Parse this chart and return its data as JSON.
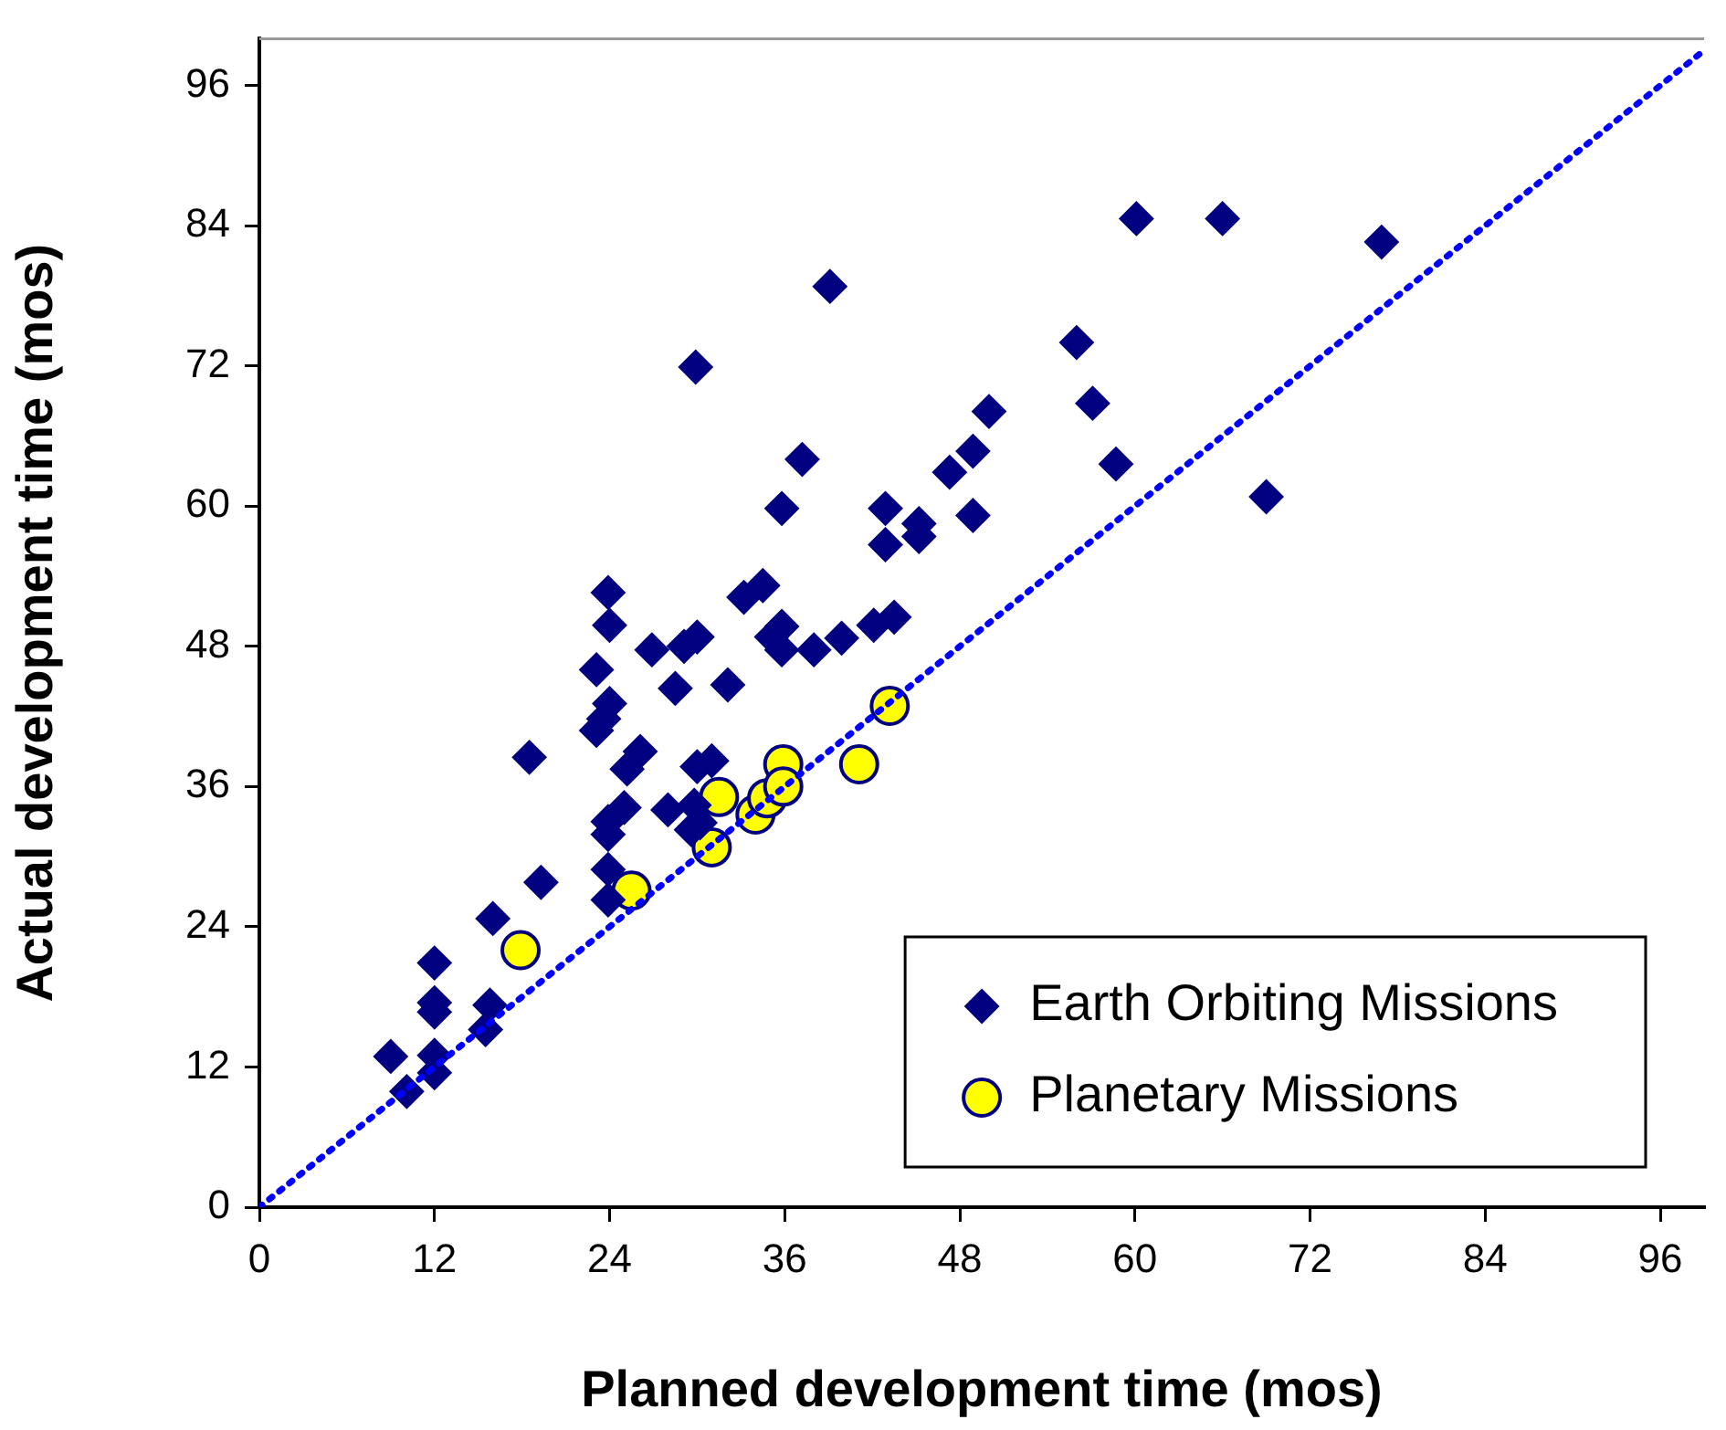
{
  "chart_data": {
    "type": "scatter",
    "xlabel": "Planned development time (mos)",
    "ylabel": "Actual development time (mos)",
    "xlim": [
      0,
      99
    ],
    "ylim": [
      0,
      100
    ],
    "xticks": [
      0,
      12,
      24,
      36,
      48,
      60,
      72,
      84,
      96
    ],
    "yticks": [
      0,
      12,
      24,
      36,
      48,
      60,
      72,
      84,
      96
    ],
    "grid": false,
    "legend": "bottom right",
    "series": [
      {
        "name": "Earth Orbiting Missions",
        "color": "#000080",
        "marker": "diamond",
        "x": [
          23.9,
          24,
          26.9,
          29.1,
          30,
          33.2,
          34.5,
          35.1,
          35.8,
          35.8,
          38,
          39.9,
          42.1,
          43.5,
          23.1,
          24,
          23.6,
          23.1,
          28.5,
          32.1,
          18.5,
          26.1,
          25.2,
          25,
          23.9,
          23.9,
          28,
          29.8,
          30.2,
          29.6,
          31,
          30,
          23.9,
          23.9,
          19.3,
          16,
          12,
          12,
          12,
          15.8,
          15.5,
          9,
          12,
          12,
          10.1,
          39.1,
          29.9,
          37.2,
          35.8,
          42.9,
          45.2,
          45.2,
          42.9,
          47.3,
          48.9,
          50,
          48.9,
          60.1,
          66,
          76.9,
          56,
          57.1,
          58.7,
          69
        ],
        "values": [
          52.6,
          49.8,
          47.7,
          48,
          48.8,
          52.2,
          53.2,
          48.8,
          49.7,
          47.7,
          47.7,
          48.7,
          49.8,
          50.5,
          46,
          43.1,
          41.8,
          40.8,
          44.4,
          44.7,
          38.5,
          39,
          37.5,
          34.2,
          33,
          31.9,
          34,
          34.4,
          32.9,
          32.3,
          38.2,
          37.7,
          28.9,
          26.3,
          27.8,
          24.7,
          20.9,
          17.5,
          16.7,
          17.3,
          15.2,
          12.9,
          13,
          11.5,
          9.9,
          78.8,
          71.9,
          64,
          59.8,
          59.8,
          58.5,
          57.4,
          56.7,
          62.9,
          64.7,
          68.1,
          59.2,
          84.6,
          84.6,
          82.6,
          74,
          68.8,
          63.6,
          60.8
        ]
      },
      {
        "name": "Planetary Missions",
        "color": "#ffff00",
        "marker": "circle",
        "x": [
          17.9,
          25.5,
          31,
          31.5,
          34,
          34.8,
          35.9,
          35.9,
          41.1,
          43.2
        ],
        "values": [
          22,
          27.1,
          30.8,
          35.1,
          33.6,
          35,
          37.9,
          36,
          37.9,
          42.9
        ]
      },
      {
        "type": "line",
        "color": "#0000ff",
        "marker": "none",
        "line_style": "dotted",
        "x": [
          0,
          99
        ],
        "values": [
          0,
          99
        ]
      }
    ]
  }
}
